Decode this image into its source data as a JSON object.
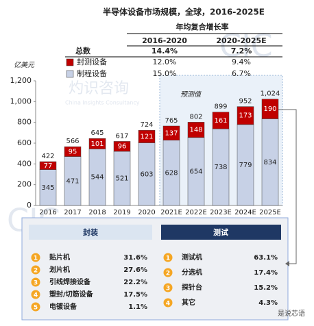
{
  "chart_data": {
    "type": "stacked-bar",
    "title": "半导体设备市场规模，全球，2016-2025E",
    "y_label": "亿美元",
    "categories": [
      "2016",
      "2017",
      "2018",
      "2019",
      "2020",
      "2021E",
      "2022E",
      "2023E",
      "2024E",
      "2025E"
    ],
    "series": [
      {
        "name": "制程设备",
        "color": "#c7d1e6",
        "values": [
          345,
          471,
          544,
          521,
          603,
          628,
          654,
          738,
          779,
          834
        ]
      },
      {
        "name": "封测设备",
        "color": "#c00000",
        "values": [
          77,
          95,
          101,
          96,
          121,
          137,
          148,
          161,
          173,
          190
        ]
      }
    ],
    "totals": [
      422,
      566,
      645,
      617,
      724,
      765,
      802,
      899,
      952,
      1024
    ],
    "totals_labels": [
      "422",
      "566",
      "645",
      "617",
      "724",
      "765",
      "802",
      "899",
      "952",
      "1,024"
    ],
    "forecast_label": "预测值",
    "ylim": [
      0,
      1200
    ],
    "yticks": [
      0,
      200,
      400,
      600,
      800,
      {
        "value": 1000,
        "label": "1,000"
      },
      {
        "value": 1200,
        "label": "1,200"
      }
    ]
  },
  "cagr_table": {
    "header": "年均复合增长率",
    "columns": [
      "2016-2020",
      "2020-2025E"
    ],
    "total_label": "总数",
    "rows": [
      [
        "14.4%",
        "7.2%"
      ],
      [
        "12.0%",
        "9.4%"
      ],
      [
        "15.0%",
        "6.7%"
      ]
    ]
  },
  "breakdown": {
    "left": {
      "title": "封装",
      "items": [
        {
          "no": "1",
          "name": "贴片机",
          "share": "31.6%"
        },
        {
          "no": "2",
          "name": "划片机",
          "share": "27.6%"
        },
        {
          "no": "3",
          "name": "引线焊接设备",
          "share": "22.2%"
        },
        {
          "no": "4",
          "name": "塑封/切筋设备",
          "share": "17.5%"
        },
        {
          "no": "5",
          "name": "电镀设备",
          "share": "1.1%"
        }
      ]
    },
    "right": {
      "title": "测试",
      "items": [
        {
          "no": "1",
          "name": "测试机",
          "share": "63.1%"
        },
        {
          "no": "2",
          "name": "分选机",
          "share": "17.4%"
        },
        {
          "no": "3",
          "name": "探针台",
          "share": "15.2%"
        },
        {
          "no": "4",
          "name": "其它",
          "share": "4.3%"
        }
      ]
    }
  },
  "watermarks": [
    "CIC",
    "China Insights Consultancy",
    "灼识咨询",
    "是说芯语"
  ]
}
